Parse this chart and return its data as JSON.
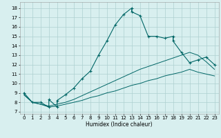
{
  "title": "",
  "xlabel": "Humidex (Indice chaleur)",
  "background_color": "#d8efef",
  "grid_color": "#aed0d0",
  "line_color": "#006666",
  "xlim": [
    -0.5,
    23.5
  ],
  "ylim": [
    6.8,
    18.6
  ],
  "yticks": [
    7,
    8,
    9,
    10,
    11,
    12,
    13,
    14,
    15,
    16,
    17,
    18
  ],
  "xticks": [
    0,
    1,
    2,
    3,
    4,
    5,
    6,
    7,
    8,
    9,
    10,
    11,
    12,
    13,
    14,
    15,
    16,
    17,
    18,
    19,
    20,
    21,
    22,
    23
  ],
  "curve_main_x": [
    0,
    1,
    2,
    3,
    3,
    4,
    4,
    5,
    6,
    7,
    8,
    9,
    10,
    11,
    12,
    13,
    13,
    14,
    15,
    16,
    17,
    18,
    18,
    19,
    20,
    21,
    22,
    23
  ],
  "curve_main_y": [
    9.0,
    8.0,
    8.0,
    7.5,
    8.3,
    7.5,
    8.2,
    8.8,
    9.5,
    10.5,
    11.3,
    13.0,
    14.5,
    16.2,
    17.3,
    18.0,
    17.6,
    17.2,
    15.0,
    15.0,
    14.8,
    15.0,
    14.5,
    13.3,
    12.2,
    12.5,
    12.8,
    12.0
  ],
  "curve_upper_x": [
    0,
    1,
    2,
    3,
    4,
    5,
    6,
    7,
    8,
    9,
    10,
    11,
    12,
    13,
    14,
    15,
    16,
    17,
    18,
    19,
    20,
    21,
    22,
    23
  ],
  "curve_upper_y": [
    8.8,
    8.0,
    7.8,
    7.6,
    7.8,
    8.0,
    8.3,
    8.7,
    9.1,
    9.5,
    9.9,
    10.3,
    10.7,
    11.1,
    11.5,
    11.8,
    12.1,
    12.4,
    12.7,
    13.0,
    13.3,
    13.0,
    12.3,
    11.5
  ],
  "curve_lower_x": [
    0,
    1,
    2,
    3,
    4,
    5,
    6,
    7,
    8,
    9,
    10,
    11,
    12,
    13,
    14,
    15,
    16,
    17,
    18,
    19,
    20,
    21,
    22,
    23
  ],
  "curve_lower_y": [
    8.8,
    8.0,
    7.8,
    7.5,
    7.6,
    7.8,
    8.0,
    8.2,
    8.5,
    8.7,
    9.0,
    9.2,
    9.5,
    9.8,
    10.0,
    10.3,
    10.5,
    10.8,
    11.0,
    11.2,
    11.5,
    11.2,
    11.0,
    10.8
  ]
}
